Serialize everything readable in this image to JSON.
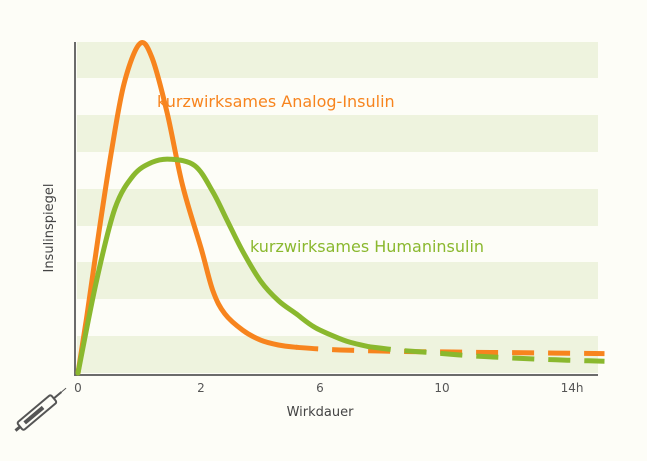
{
  "chart_data": {
    "type": "line",
    "xlabel": "Wirkdauer",
    "ylabel": "Insulinspiegel",
    "x_ticks": [
      {
        "value": 0,
        "label": "0"
      },
      {
        "value": 2,
        "label": "2"
      },
      {
        "value": 6,
        "label": "6"
      },
      {
        "value": 10,
        "label": "10"
      },
      {
        "value": 14,
        "label": "14h"
      }
    ],
    "grid": "horizontal bands",
    "colors": {
      "band": "#eef3de",
      "background": "#fdfdf7",
      "axis": "#6b6b6b"
    },
    "series": [
      {
        "name": "kurzwirksames Analog-Insulin",
        "color": "#f7841e",
        "solid_until_x": 5.2
      },
      {
        "name": "kurzwirksames Humaninsulin",
        "color": "#8ab82e",
        "solid_until_x": 7.6
      }
    ],
    "icon": "insulin-pen-icon"
  }
}
